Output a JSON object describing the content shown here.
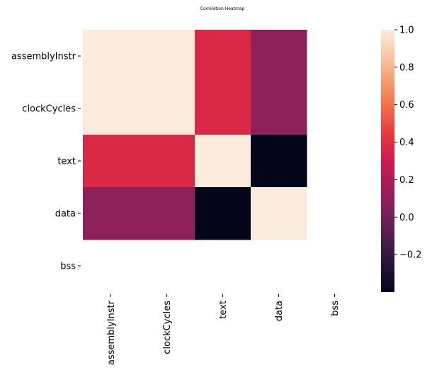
{
  "chart_data": {
    "type": "heatmap",
    "title": "Correlation Heatmap",
    "xlabel": "",
    "ylabel": "",
    "categories_x": [
      "assemblyInstr",
      "clockCycles",
      "text",
      "data",
      "bss"
    ],
    "categories_y": [
      "assemblyInstr",
      "clockCycles",
      "text",
      "data",
      "bss"
    ],
    "values": [
      [
        1.0,
        1.0,
        0.37,
        0.09,
        null
      ],
      [
        1.0,
        1.0,
        0.37,
        0.09,
        null
      ],
      [
        0.37,
        0.37,
        1.0,
        -0.4,
        null
      ],
      [
        0.09,
        0.09,
        -0.4,
        1.0,
        null
      ],
      [
        null,
        null,
        null,
        null,
        null
      ]
    ],
    "colorbar": {
      "vmin": -0.4,
      "vmax": 1.0,
      "ticks": [
        -0.2,
        0.0,
        0.2,
        0.4,
        0.6,
        0.8,
        1.0
      ],
      "tick_labels": [
        "−0.2",
        "0.0",
        "0.2",
        "0.4",
        "0.6",
        "0.8",
        "1.0"
      ],
      "colormap": "rocket"
    },
    "grid": false,
    "legend": "colorbar-right"
  }
}
